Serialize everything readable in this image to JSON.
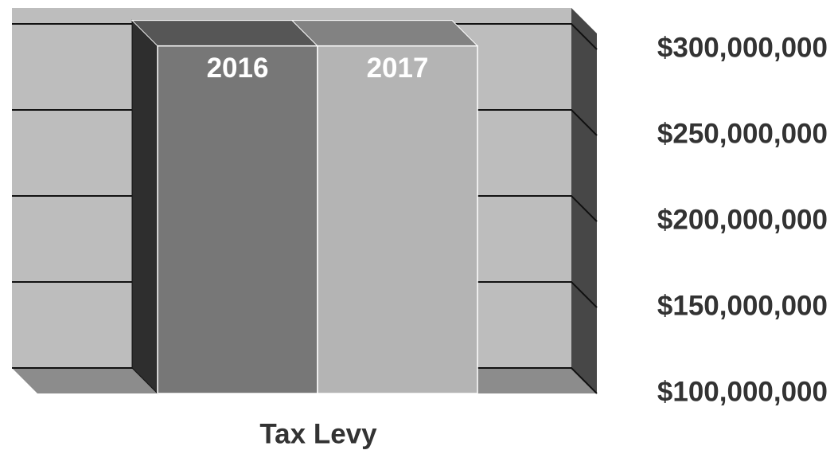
{
  "chart_data": {
    "type": "bar3d",
    "x_label": "Tax Levy",
    "categories": [
      "Tax Levy"
    ],
    "series": [
      {
        "name": "2016",
        "color": "#777777",
        "values": [
          302000000
        ]
      },
      {
        "name": "2017",
        "color": "#b4b4b4",
        "values": [
          302000000
        ]
      }
    ],
    "ylim": [
      100000000,
      300000000
    ],
    "yticks": [
      {
        "value": 100000000,
        "label": "$100,000,000"
      },
      {
        "value": 150000000,
        "label": "$150,000,000"
      },
      {
        "value": 200000000,
        "label": "$200,000,000"
      },
      {
        "value": 250000000,
        "label": "$250,000,000"
      },
      {
        "value": 300000000,
        "label": "$300,000,000"
      }
    ],
    "grid": true
  }
}
